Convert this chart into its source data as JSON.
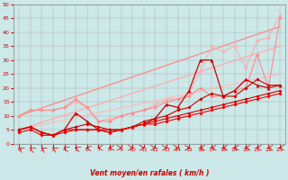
{
  "xlabel": "Vent moyen/en rafales ( km/h )",
  "xlim": [
    -0.5,
    23.5
  ],
  "ylim": [
    0,
    50
  ],
  "yticks": [
    0,
    5,
    10,
    15,
    20,
    25,
    30,
    35,
    40,
    45,
    50
  ],
  "xticks": [
    0,
    1,
    2,
    3,
    4,
    5,
    6,
    7,
    8,
    9,
    10,
    11,
    12,
    13,
    14,
    15,
    16,
    17,
    18,
    19,
    20,
    21,
    22,
    23
  ],
  "bg_color": "#cce8e8",
  "grid_color": "#aaaaaa",
  "series": [
    {
      "x": [
        0,
        23
      ],
      "y": [
        5,
        25
      ],
      "color": "#ffbbbb",
      "lw": 0.9,
      "marker": null,
      "ms": 0
    },
    {
      "x": [
        0,
        23
      ],
      "y": [
        5,
        35
      ],
      "color": "#ffaaaa",
      "lw": 0.9,
      "marker": null,
      "ms": 0
    },
    {
      "x": [
        0,
        23
      ],
      "y": [
        10,
        42
      ],
      "color": "#ff8888",
      "lw": 0.9,
      "marker": null,
      "ms": 0
    },
    {
      "x": [
        0,
        1,
        2,
        3,
        4,
        5,
        6,
        7,
        8,
        9,
        10,
        11,
        12,
        13,
        14,
        15,
        16,
        17,
        18,
        19,
        20,
        21,
        22,
        23
      ],
      "y": [
        10,
        12,
        12,
        12,
        13,
        15,
        13,
        8,
        9,
        10,
        11,
        12,
        14,
        16,
        16,
        18,
        26,
        35,
        33,
        35,
        27,
        37,
        38,
        46
      ],
      "color": "#ffaaaa",
      "lw": 0.8,
      "marker": "D",
      "ms": 1.8
    },
    {
      "x": [
        0,
        1,
        2,
        3,
        4,
        5,
        6,
        7,
        8,
        9,
        10,
        11,
        12,
        13,
        14,
        15,
        16,
        17,
        18,
        19,
        20,
        21,
        22,
        23
      ],
      "y": [
        10,
        12,
        12,
        12,
        13,
        16,
        13,
        8,
        8,
        10,
        11,
        12,
        13,
        15,
        16,
        17,
        20,
        17,
        17,
        19,
        20,
        32,
        20,
        45
      ],
      "color": "#ff8888",
      "lw": 0.8,
      "marker": "D",
      "ms": 1.8
    },
    {
      "x": [
        0,
        1,
        2,
        3,
        4,
        5,
        6,
        7,
        8,
        9,
        10,
        11,
        12,
        13,
        14,
        15,
        16,
        17,
        18,
        19,
        20,
        21,
        22,
        23
      ],
      "y": [
        5,
        6,
        4,
        3,
        5,
        11,
        8,
        5,
        4,
        5,
        6,
        7,
        9,
        14,
        13,
        19,
        30,
        30,
        17,
        19,
        23,
        21,
        20,
        21
      ],
      "color": "#cc0000",
      "lw": 0.9,
      "marker": "^",
      "ms": 2.5
    },
    {
      "x": [
        0,
        1,
        2,
        3,
        4,
        5,
        6,
        7,
        8,
        9,
        10,
        11,
        12,
        13,
        14,
        15,
        16,
        17,
        18,
        19,
        20,
        21,
        22,
        23
      ],
      "y": [
        5,
        6,
        4,
        3,
        5,
        6,
        7,
        6,
        5,
        5,
        6,
        8,
        9,
        10,
        12,
        13,
        16,
        18,
        17,
        17,
        20,
        23,
        21,
        21
      ],
      "color": "#cc0000",
      "lw": 0.8,
      "marker": "D",
      "ms": 1.8
    },
    {
      "x": [
        0,
        1,
        2,
        3,
        4,
        5,
        6,
        7,
        8,
        9,
        10,
        11,
        12,
        13,
        14,
        15,
        16,
        17,
        18,
        19,
        20,
        21,
        22,
        23
      ],
      "y": [
        5,
        6,
        4,
        3,
        5,
        5,
        5,
        5,
        5,
        5,
        6,
        7,
        8,
        9,
        10,
        11,
        12,
        13,
        14,
        15,
        16,
        17,
        18,
        19
      ],
      "color": "#dd0000",
      "lw": 0.8,
      "marker": "D",
      "ms": 1.8
    },
    {
      "x": [
        0,
        1,
        2,
        3,
        4,
        5,
        6,
        7,
        8,
        9,
        10,
        11,
        12,
        13,
        14,
        15,
        16,
        17,
        18,
        19,
        20,
        21,
        22,
        23
      ],
      "y": [
        4,
        5,
        3,
        3,
        4,
        5,
        5,
        5,
        4,
        5,
        6,
        7,
        7,
        8,
        9,
        10,
        11,
        12,
        13,
        14,
        15,
        16,
        17,
        18
      ],
      "color": "#ee0000",
      "lw": 0.8,
      "marker": "D",
      "ms": 1.8
    }
  ],
  "wind_angles": [
    315,
    315,
    315,
    315,
    300,
    300,
    285,
    270,
    270,
    90,
    90,
    90,
    90,
    90,
    90,
    90,
    270,
    270,
    270,
    270,
    270,
    270,
    270,
    270
  ]
}
